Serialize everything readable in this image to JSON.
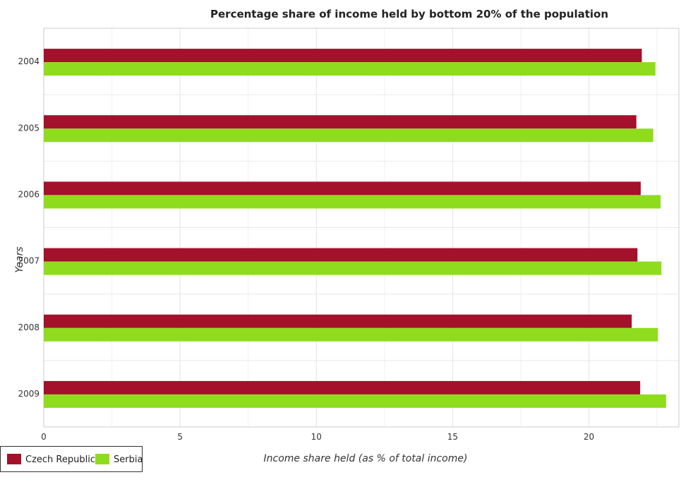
{
  "chart_data": {
    "type": "bar",
    "orientation": "horizontal",
    "title": "Percentage share of income held by bottom 20% of the population",
    "xlabel": "Income share held (as % of total income)",
    "ylabel": "Years",
    "categories": [
      "2004",
      "2005",
      "2006",
      "2007",
      "2008",
      "2009"
    ],
    "series": [
      {
        "name": "Czech Republic",
        "color": "#a3112a",
        "values": [
          21.94,
          21.74,
          21.9,
          21.78,
          21.57,
          21.88
        ]
      },
      {
        "name": "Serbia",
        "color": "#8fdc1e",
        "values": [
          22.44,
          22.36,
          22.63,
          22.66,
          22.53,
          22.83
        ]
      }
    ],
    "xlim": [
      0,
      23.3
    ],
    "xticks": [
      0,
      5,
      10,
      15,
      20
    ],
    "grid": true,
    "legend_position": "bottom-left"
  }
}
